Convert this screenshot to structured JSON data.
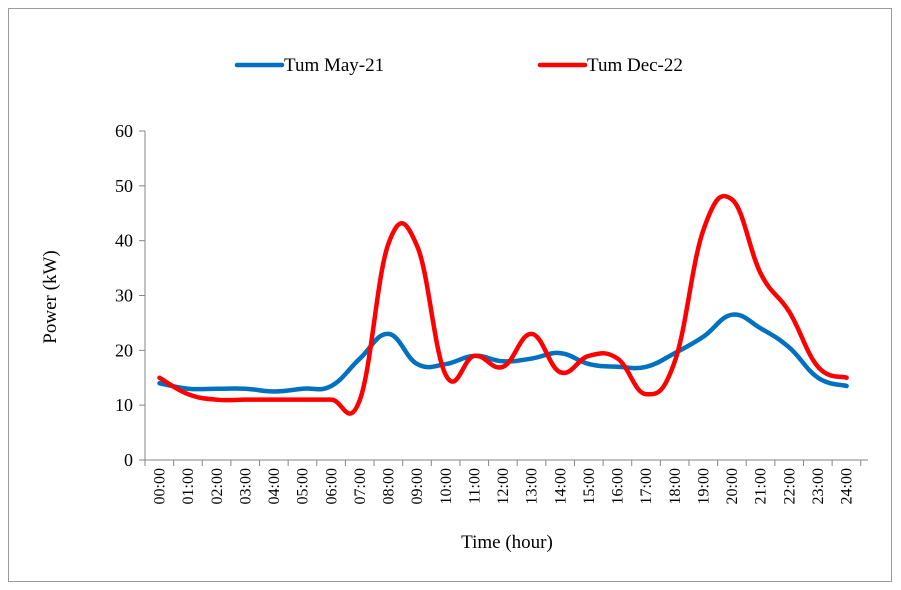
{
  "chart_data": {
    "type": "line",
    "xlabel": "Time (hour)",
    "ylabel": "Power (kW)",
    "ylim": [
      0,
      60
    ],
    "yticks": [
      0,
      10,
      20,
      30,
      40,
      50,
      60
    ],
    "categories": [
      "00:00",
      "01:00",
      "02:00",
      "03:00",
      "04:00",
      "05:00",
      "06:00",
      "07:00",
      "08:00",
      "09:00",
      "10:00",
      "11:00",
      "12:00",
      "13:00",
      "14:00",
      "15:00",
      "16:00",
      "17:00",
      "18:00",
      "19:00",
      "20:00",
      "21:00",
      "22:00",
      "23:00",
      "24:00"
    ],
    "series": [
      {
        "name": "Tum May-21",
        "color": "#0070C0",
        "values": [
          14,
          13,
          13,
          13,
          12.5,
          13,
          13.5,
          18.5,
          23,
          17.5,
          17.5,
          19,
          18,
          18.5,
          19.5,
          17.5,
          17,
          17,
          19.5,
          22.5,
          26.5,
          24,
          20.5,
          15,
          13.5
        ]
      },
      {
        "name": "Tum Dec-22",
        "color": "#FF0000",
        "values": [
          15,
          12,
          11,
          11,
          11,
          11,
          11,
          11,
          39.5,
          39,
          15.5,
          19,
          17,
          23,
          16,
          19,
          18.5,
          12,
          18,
          42,
          47.5,
          34,
          27,
          17,
          15
        ]
      }
    ],
    "legend_position": "top",
    "grid": false
  }
}
